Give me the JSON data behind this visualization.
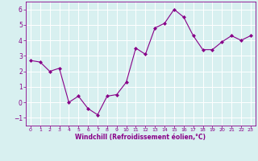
{
  "x": [
    0,
    1,
    2,
    3,
    4,
    5,
    6,
    7,
    8,
    9,
    10,
    11,
    12,
    13,
    14,
    15,
    16,
    17,
    18,
    19,
    20,
    21,
    22,
    23
  ],
  "y": [
    2.7,
    2.6,
    2.0,
    2.2,
    0.0,
    0.4,
    -0.4,
    -0.8,
    0.4,
    0.5,
    1.3,
    3.5,
    3.1,
    4.8,
    5.1,
    6.0,
    5.5,
    4.3,
    3.4,
    3.4,
    3.9,
    4.3,
    4.0,
    4.3
  ],
  "line_color": "#880088",
  "marker_color": "#880088",
  "bg_color": "#d8f0f0",
  "grid_color": "#b8d8d8",
  "xlabel": "Windchill (Refroidissement éolien,°C)",
  "xlabel_color": "#880088",
  "tick_color": "#880088",
  "xlim": [
    -0.5,
    23.5
  ],
  "ylim": [
    -1.5,
    6.5
  ],
  "yticks": [
    -1,
    0,
    1,
    2,
    3,
    4,
    5,
    6
  ],
  "xticks": [
    0,
    1,
    2,
    3,
    4,
    5,
    6,
    7,
    8,
    9,
    10,
    11,
    12,
    13,
    14,
    15,
    16,
    17,
    18,
    19,
    20,
    21,
    22,
    23
  ]
}
